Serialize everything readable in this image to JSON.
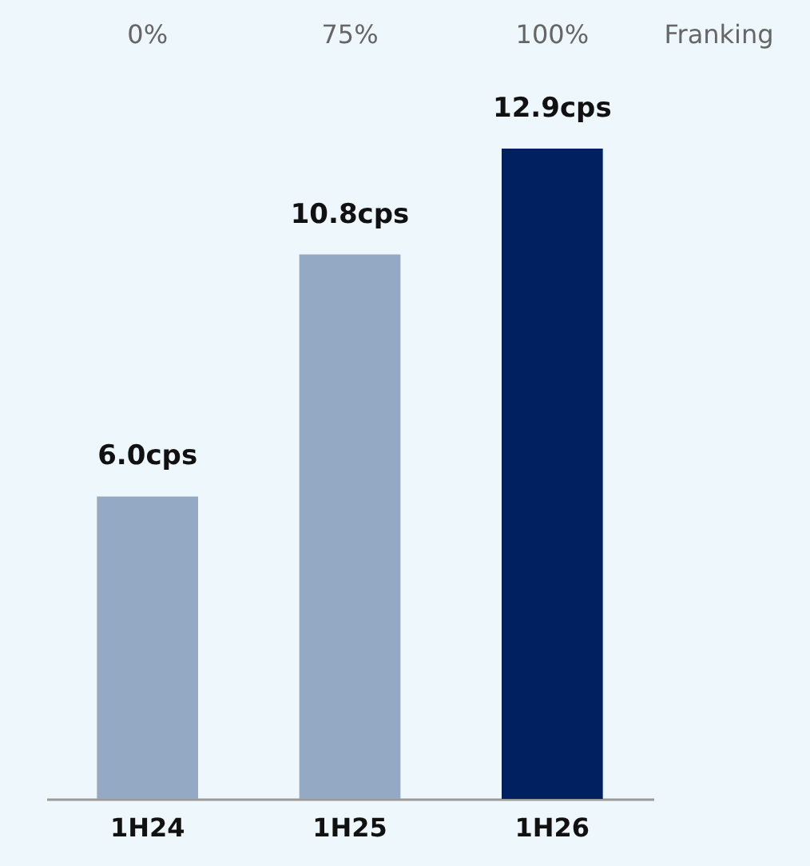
{
  "chart_data": {
    "type": "bar",
    "categories": [
      "1H24",
      "1H25",
      "1H26"
    ],
    "values": [
      6.0,
      10.8,
      12.9
    ],
    "colors": [
      "#94a9c4",
      "#94a9c4",
      "#00205f"
    ],
    "value_labels": [
      "6.0cps",
      "10.8cps",
      "12.9cps"
    ],
    "annotations": [
      "0%",
      "75%",
      "100%",
      "Franking"
    ],
    "grid": false
  }
}
